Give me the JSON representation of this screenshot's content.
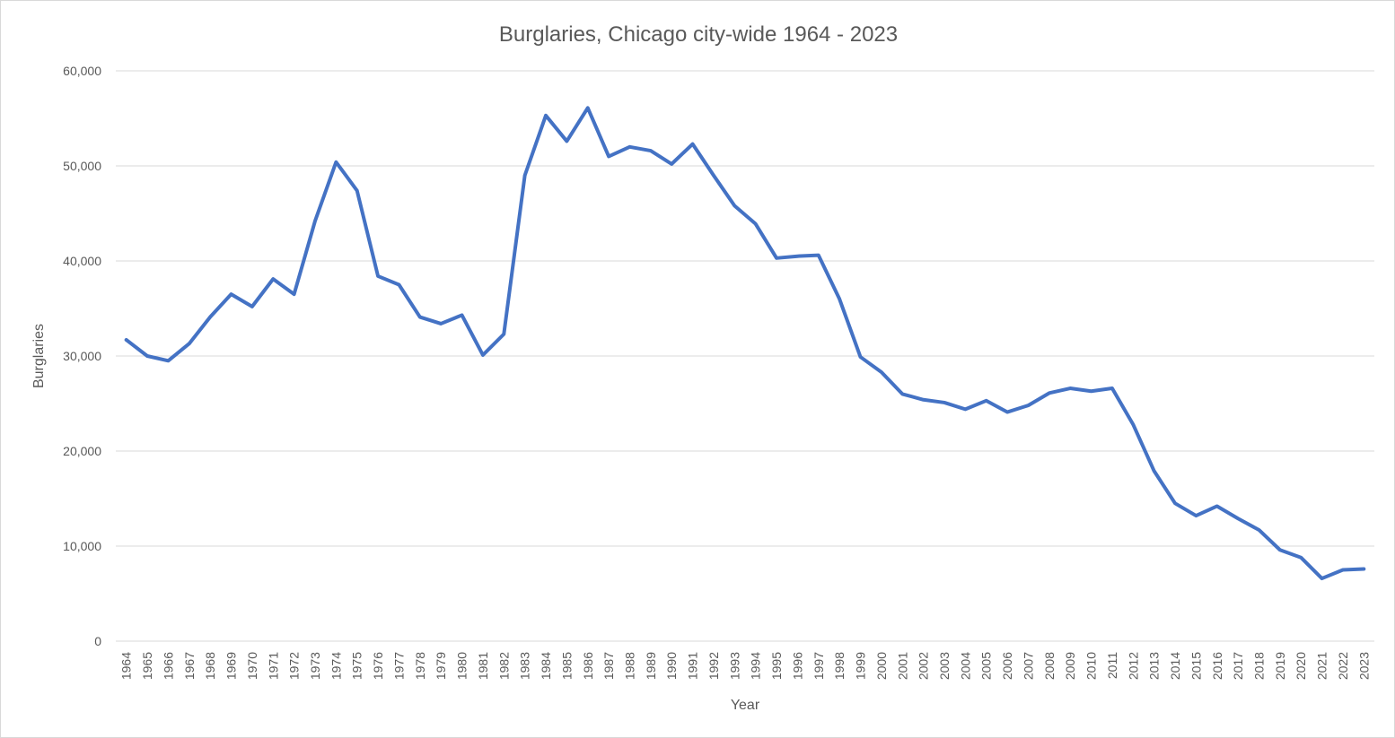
{
  "chart_data": {
    "type": "line",
    "title": "Burglaries, Chicago city-wide 1964 - 2023",
    "xlabel": "Year",
    "ylabel": "Burglaries",
    "ylim": [
      0,
      60000
    ],
    "y_ticks": [
      0,
      10000,
      20000,
      30000,
      40000,
      50000,
      60000
    ],
    "y_tick_labels": [
      "0",
      "10,000",
      "20,000",
      "30,000",
      "40,000",
      "50,000",
      "60,000"
    ],
    "grid": true,
    "legend": "none",
    "line_color": "#4472C4",
    "categories": [
      "1964",
      "1965",
      "1966",
      "1967",
      "1968",
      "1969",
      "1970",
      "1971",
      "1972",
      "1973",
      "1974",
      "1975",
      "1976",
      "1977",
      "1978",
      "1979",
      "1980",
      "1981",
      "1982",
      "1983",
      "1984",
      "1985",
      "1986",
      "1987",
      "1988",
      "1989",
      "1990",
      "1991",
      "1992",
      "1993",
      "1994",
      "1995",
      "1996",
      "1997",
      "1998",
      "1999",
      "2000",
      "2001",
      "2002",
      "2003",
      "2004",
      "2005",
      "2006",
      "2007",
      "2008",
      "2009",
      "2010",
      "2011",
      "2012",
      "2013",
      "2014",
      "2015",
      "2016",
      "2017",
      "2018",
      "2019",
      "2020",
      "2021",
      "2022",
      "2023"
    ],
    "series": [
      {
        "values": [
          31700,
          30000,
          29500,
          31300,
          34100,
          36500,
          35200,
          38100,
          36500,
          44200,
          50400,
          47400,
          38400,
          37500,
          34100,
          33400,
          34300,
          30100,
          32300,
          49000,
          55300,
          52600,
          56100,
          51000,
          52000,
          51600,
          50200,
          52300,
          49000,
          45800,
          43900,
          40300,
          40500,
          40600,
          36000,
          29900,
          28300,
          26000,
          25400,
          25100,
          24400,
          25300,
          24100,
          24800,
          26100,
          26600,
          26300,
          26600,
          22800,
          17900,
          14500,
          13200,
          14200,
          12900,
          11700,
          9600,
          8800,
          6600,
          7500,
          7600
        ]
      }
    ]
  }
}
